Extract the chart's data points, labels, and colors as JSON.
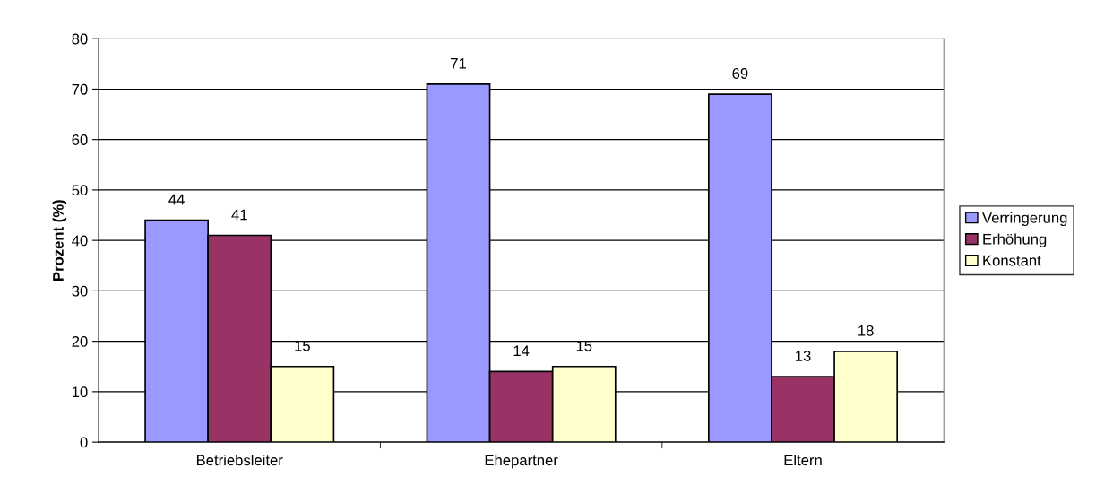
{
  "chart_data": {
    "type": "bar",
    "ylabel": "Prozent (%)",
    "categories": [
      "Betriebsleiter",
      "Ehepartner",
      "Eltern"
    ],
    "series": [
      {
        "name": "Verringerung",
        "color": "#9999ff",
        "values": [
          44,
          71,
          69
        ]
      },
      {
        "name": "Erhöhung",
        "color": "#993366",
        "values": [
          41,
          14,
          13
        ]
      },
      {
        "name": "Konstant",
        "color": "#ffffcc",
        "values": [
          15,
          15,
          18
        ]
      }
    ],
    "ylim": [
      0,
      80
    ],
    "yticks": [
      0,
      10,
      20,
      30,
      40,
      50,
      60,
      70,
      80
    ],
    "grid": "y",
    "legend": "right",
    "data_labels": true
  }
}
